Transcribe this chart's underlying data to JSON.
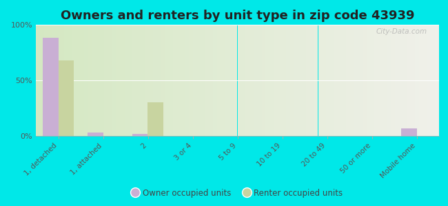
{
  "title": "Owners and renters by unit type in zip code 43939",
  "categories": [
    "1, detached",
    "1, attached",
    "2",
    "3 or 4",
    "5 to 9",
    "10 to 19",
    "20 to 49",
    "50 or more",
    "Mobile home"
  ],
  "owner_values": [
    88,
    3,
    2,
    0,
    0,
    0,
    0,
    0,
    7
  ],
  "renter_values": [
    68,
    0,
    30,
    0,
    0,
    0,
    0,
    0,
    0
  ],
  "owner_color": "#c9afd4",
  "renter_color": "#c8d4a0",
  "background_color": "#00e8e8",
  "plot_bg_left": "#d4e8c2",
  "plot_bg_right": "#f0f0ea",
  "ylim": [
    0,
    100
  ],
  "yticks": [
    0,
    50,
    100
  ],
  "ytick_labels": [
    "0%",
    "50%",
    "100%"
  ],
  "legend_owner": "Owner occupied units",
  "legend_renter": "Renter occupied units",
  "title_fontsize": 13,
  "bar_width": 0.35
}
